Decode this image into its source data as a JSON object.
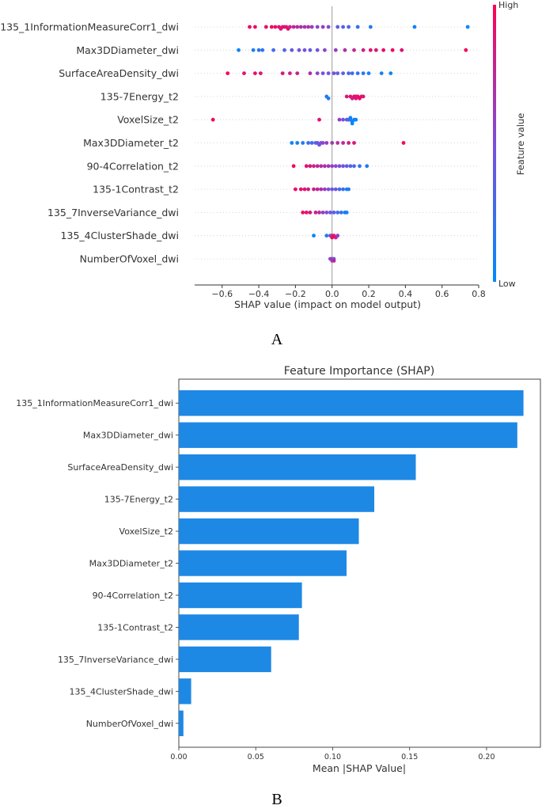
{
  "chart_data": [
    {
      "type": "scatter",
      "subtype": "shap-beeswarm",
      "panel_label": "A",
      "title": "",
      "xlabel": "SHAP value (impact on model output)",
      "xlim": [
        -0.75,
        0.8
      ],
      "x_ticks": [
        -0.6,
        -0.4,
        -0.2,
        0.0,
        0.2,
        0.4,
        0.6,
        0.8
      ],
      "x_tick_labels": [
        "−0.6",
        "−0.4",
        "−0.2",
        "0.0",
        "0.2",
        "0.4",
        "0.6",
        "0.8"
      ],
      "colorbar": {
        "label": "Feature value",
        "high_label": "High",
        "low_label": "Low",
        "low_color": "#008bfb",
        "high_color": "#ff0052"
      },
      "features": [
        {
          "name": "135_1InformationMeasureCorr1_dwi",
          "points": [
            [
              -0.45,
              0.95
            ],
            [
              -0.42,
              0.9
            ],
            [
              -0.36,
              0.92
            ],
            [
              -0.33,
              0.95
            ],
            [
              -0.31,
              0.9
            ],
            [
              -0.29,
              0.88
            ],
            [
              -0.28,
              0.85
            ],
            [
              -0.27,
              0.9
            ],
            [
              -0.26,
              0.92
            ],
            [
              -0.25,
              0.87
            ],
            [
              -0.24,
              0.9
            ],
            [
              -0.23,
              0.8
            ],
            [
              -0.21,
              0.75
            ],
            [
              -0.19,
              0.7
            ],
            [
              -0.17,
              0.72
            ],
            [
              -0.15,
              0.65
            ],
            [
              -0.13,
              0.7
            ],
            [
              -0.11,
              0.6
            ],
            [
              -0.08,
              0.55
            ],
            [
              -0.05,
              0.6
            ],
            [
              -0.02,
              0.55
            ],
            [
              0.03,
              0.4
            ],
            [
              0.06,
              0.35
            ],
            [
              0.09,
              0.3
            ],
            [
              0.14,
              0.2
            ],
            [
              0.21,
              0.12
            ],
            [
              0.45,
              0.05
            ],
            [
              0.74,
              0.02
            ]
          ]
        },
        {
          "name": "Max3DDiameter_dwi",
          "points": [
            [
              -0.51,
              0.05
            ],
            [
              -0.43,
              0.1
            ],
            [
              -0.4,
              0.2
            ],
            [
              -0.38,
              0.15
            ],
            [
              -0.32,
              0.3
            ],
            [
              -0.26,
              0.35
            ],
            [
              -0.22,
              0.4
            ],
            [
              -0.18,
              0.45
            ],
            [
              -0.15,
              0.5
            ],
            [
              -0.12,
              0.4
            ],
            [
              -0.08,
              0.45
            ],
            [
              -0.04,
              0.55
            ],
            [
              0.02,
              0.6
            ],
            [
              0.07,
              0.7
            ],
            [
              0.12,
              0.75
            ],
            [
              0.17,
              0.8
            ],
            [
              0.21,
              0.9
            ],
            [
              0.24,
              0.85
            ],
            [
              0.28,
              0.92
            ],
            [
              0.33,
              0.95
            ],
            [
              0.38,
              0.9
            ],
            [
              0.73,
              0.98
            ]
          ]
        },
        {
          "name": "SurfaceAreaDensity_dwi",
          "points": [
            [
              -0.57,
              0.95
            ],
            [
              -0.48,
              0.9
            ],
            [
              -0.42,
              0.92
            ],
            [
              -0.39,
              0.88
            ],
            [
              -0.27,
              0.85
            ],
            [
              -0.23,
              0.8
            ],
            [
              -0.19,
              0.78
            ],
            [
              -0.12,
              0.7
            ],
            [
              -0.08,
              0.55
            ],
            [
              -0.05,
              0.5
            ],
            [
              -0.02,
              0.45
            ],
            [
              0.01,
              0.45
            ],
            [
              0.03,
              0.4
            ],
            [
              0.06,
              0.35
            ],
            [
              0.09,
              0.3
            ],
            [
              0.11,
              0.25
            ],
            [
              0.14,
              0.2
            ],
            [
              0.17,
              0.15
            ],
            [
              0.2,
              0.12
            ],
            [
              0.27,
              0.1
            ],
            [
              0.32,
              0.08
            ]
          ]
        },
        {
          "name": "135-7Energy_t2",
          "points": [
            [
              -0.03,
              0.1
            ],
            [
              -0.02,
              0.15
            ],
            [
              0.08,
              0.85
            ],
            [
              0.1,
              0.9
            ],
            [
              0.12,
              0.95
            ],
            [
              0.13,
              0.9
            ],
            [
              0.14,
              0.92
            ],
            [
              0.15,
              0.95
            ],
            [
              0.16,
              0.9
            ],
            [
              0.17,
              0.88
            ],
            [
              0.11,
              0.8
            ],
            [
              0.13,
              0.85
            ]
          ]
        },
        {
          "name": "VoxelSize_t2",
          "points": [
            [
              -0.65,
              0.95
            ],
            [
              -0.07,
              0.9
            ],
            [
              0.04,
              0.6
            ],
            [
              0.06,
              0.5
            ],
            [
              0.08,
              0.4
            ],
            [
              0.09,
              0.3
            ],
            [
              0.1,
              0.2
            ],
            [
              0.11,
              0.1
            ],
            [
              0.12,
              0.05
            ],
            [
              0.13,
              0.05
            ],
            [
              0.1,
              0.05
            ],
            [
              0.11,
              0.05
            ]
          ]
        },
        {
          "name": "Max3DDiameter_t2",
          "points": [
            [
              -0.22,
              0.05
            ],
            [
              -0.19,
              0.1
            ],
            [
              -0.16,
              0.15
            ],
            [
              -0.13,
              0.2
            ],
            [
              -0.11,
              0.3
            ],
            [
              -0.09,
              0.35
            ],
            [
              -0.08,
              0.4
            ],
            [
              -0.07,
              0.45
            ],
            [
              -0.06,
              0.5
            ],
            [
              -0.05,
              0.55
            ],
            [
              -0.03,
              0.6
            ],
            [
              0.0,
              0.65
            ],
            [
              0.03,
              0.7
            ],
            [
              0.06,
              0.75
            ],
            [
              0.09,
              0.8
            ],
            [
              0.12,
              0.85
            ],
            [
              0.39,
              0.95
            ]
          ]
        },
        {
          "name": "90-4Correlation_t2",
          "points": [
            [
              -0.21,
              0.95
            ],
            [
              -0.14,
              0.9
            ],
            [
              -0.12,
              0.85
            ],
            [
              -0.1,
              0.8
            ],
            [
              -0.08,
              0.75
            ],
            [
              -0.06,
              0.7
            ],
            [
              -0.04,
              0.7
            ],
            [
              -0.02,
              0.65
            ],
            [
              0.0,
              0.6
            ],
            [
              0.02,
              0.55
            ],
            [
              0.04,
              0.5
            ],
            [
              0.06,
              0.45
            ],
            [
              0.08,
              0.4
            ],
            [
              0.1,
              0.35
            ],
            [
              0.12,
              0.3
            ],
            [
              0.15,
              0.2
            ],
            [
              0.19,
              0.1
            ]
          ]
        },
        {
          "name": "135-1Contrast_t2",
          "points": [
            [
              -0.2,
              0.95
            ],
            [
              -0.17,
              0.9
            ],
            [
              -0.15,
              0.88
            ],
            [
              -0.13,
              0.85
            ],
            [
              -0.1,
              0.8
            ],
            [
              -0.08,
              0.75
            ],
            [
              -0.06,
              0.7
            ],
            [
              -0.04,
              0.6
            ],
            [
              -0.02,
              0.5
            ],
            [
              0.0,
              0.45
            ],
            [
              0.02,
              0.4
            ],
            [
              0.04,
              0.3
            ],
            [
              0.06,
              0.2
            ],
            [
              0.08,
              0.15
            ],
            [
              0.09,
              0.1
            ]
          ]
        },
        {
          "name": "135_7InverseVariance_dwi",
          "points": [
            [
              -0.16,
              0.95
            ],
            [
              -0.14,
              0.9
            ],
            [
              -0.12,
              0.85
            ],
            [
              -0.09,
              0.8
            ],
            [
              -0.07,
              0.75
            ],
            [
              -0.05,
              0.6
            ],
            [
              -0.03,
              0.5
            ],
            [
              -0.01,
              0.45
            ],
            [
              0.01,
              0.35
            ],
            [
              0.03,
              0.25
            ],
            [
              0.05,
              0.2
            ],
            [
              0.07,
              0.15
            ],
            [
              0.08,
              0.1
            ]
          ]
        },
        {
          "name": "135_4ClusterShade_dwi",
          "points": [
            [
              -0.1,
              0.05
            ],
            [
              -0.03,
              0.15
            ],
            [
              -0.01,
              0.4
            ],
            [
              0.0,
              0.7
            ],
            [
              0.01,
              0.9
            ],
            [
              0.02,
              0.8
            ],
            [
              0.03,
              0.6
            ],
            [
              0.0,
              0.95
            ]
          ]
        },
        {
          "name": "NumberOfVoxel_dwi",
          "points": [
            [
              -0.01,
              0.5
            ],
            [
              0.0,
              0.7
            ],
            [
              0.01,
              0.4
            ],
            [
              0.0,
              0.6
            ],
            [
              0.01,
              0.8
            ]
          ]
        }
      ]
    },
    {
      "type": "bar",
      "orientation": "horizontal",
      "panel_label": "B",
      "title": "Feature Importance (SHAP)",
      "xlabel": "Mean |SHAP Value|",
      "ylabel": "",
      "xlim": [
        0,
        0.235
      ],
      "x_ticks": [
        0.0,
        0.05,
        0.1,
        0.15,
        0.2
      ],
      "x_tick_labels": [
        "0.00",
        "0.05",
        "0.10",
        "0.15",
        "0.20"
      ],
      "bar_color": "#1e88e5",
      "categories": [
        "135_1InformationMeasureCorr1_dwi",
        "Max3DDiameter_dwi",
        "SurfaceAreaDensity_dwi",
        "135-7Energy_t2",
        "VoxelSize_t2",
        "Max3DDiameter_t2",
        "90-4Correlation_t2",
        "135-1Contrast_t2",
        "135_7InverseVariance_dwi",
        "135_4ClusterShade_dwi",
        "NumberOfVoxel_dwi"
      ],
      "values": [
        0.224,
        0.22,
        0.154,
        0.127,
        0.117,
        0.109,
        0.08,
        0.078,
        0.06,
        0.008,
        0.003
      ]
    }
  ]
}
